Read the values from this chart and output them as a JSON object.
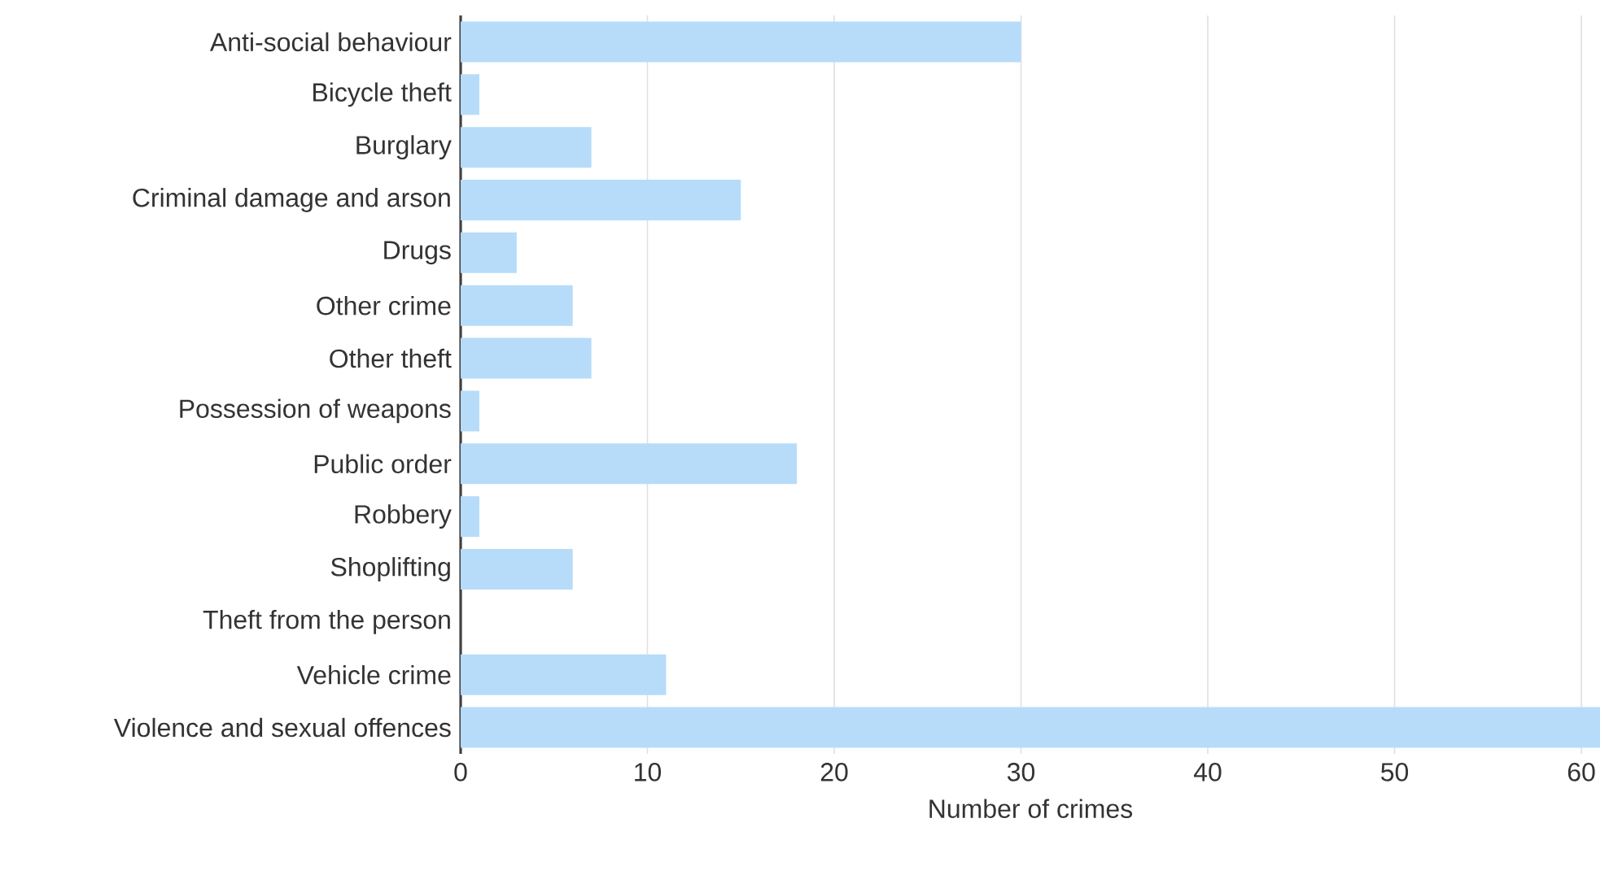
{
  "chart_data": {
    "type": "bar",
    "orientation": "horizontal",
    "xlabel": "Number of crimes",
    "categories": [
      "Anti-social behaviour",
      "Bicycle theft",
      "Burglary",
      "Criminal damage and arson",
      "Drugs",
      "Other crime",
      "Other theft",
      "Possession of weapons",
      "Public order",
      "Robbery",
      "Shoplifting",
      "Theft from the person",
      "Vehicle crime",
      "Violence and sexual offences"
    ],
    "values": [
      30,
      1,
      7,
      15,
      3,
      6,
      7,
      1,
      18,
      1,
      6,
      0,
      11,
      61
    ],
    "color": "#b7dcfa",
    "xlim": [
      0,
      61
    ],
    "xticks": [
      0,
      10,
      20,
      30,
      40,
      50,
      60
    ],
    "grid": "x"
  }
}
